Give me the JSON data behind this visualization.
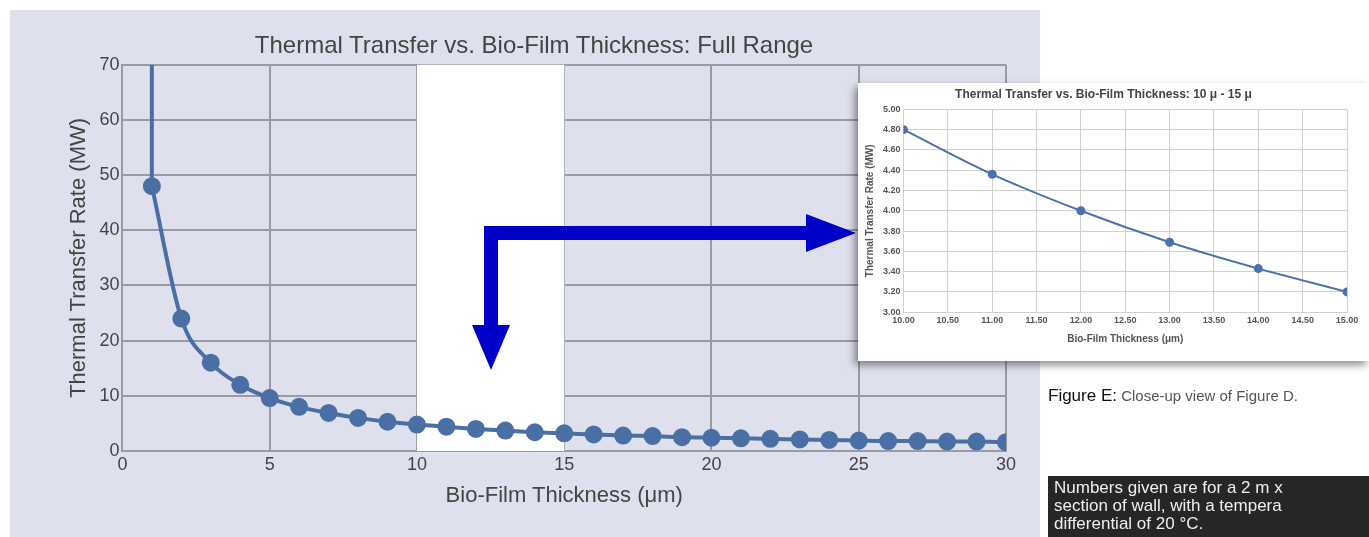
{
  "chart_data": [
    {
      "type": "line",
      "title": "Thermal Transfer vs. Bio-Film Thickness: Full Range",
      "xlabel": "Bio-Film Thickness (μm)",
      "ylabel": "Thermal Transfer Rate (MW)",
      "xlim": [
        0,
        30
      ],
      "xticks": [
        0,
        5,
        10,
        15,
        20,
        25,
        30
      ],
      "ylim": [
        0,
        70
      ],
      "yticks": [
        0,
        10,
        20,
        30,
        40,
        50,
        60,
        70
      ],
      "grid": true,
      "bands": [
        {
          "axis": "x",
          "from": 10,
          "to": 15,
          "color": "#ffffff"
        }
      ],
      "series": [
        {
          "color": "#4a6fa5",
          "x": [
            1,
            1
          ],
          "values": [
            70,
            48
          ]
        },
        {
          "color": "#4a6fa5",
          "marker": "circle",
          "x": [
            1,
            2,
            3,
            4,
            5,
            6,
            7,
            8,
            9,
            10,
            11,
            12,
            13,
            14,
            15,
            16,
            17,
            18,
            19,
            20,
            21,
            22,
            23,
            24,
            25,
            26,
            27,
            28,
            29,
            30
          ],
          "values": [
            48,
            24,
            16,
            12,
            9.6,
            8,
            6.9,
            6,
            5.3,
            4.8,
            4.4,
            4,
            3.7,
            3.4,
            3.2,
            3,
            2.8,
            2.7,
            2.5,
            2.4,
            2.3,
            2.2,
            2.1,
            2,
            1.9,
            1.8,
            1.8,
            1.7,
            1.7,
            1.6
          ]
        }
      ]
    },
    {
      "type": "line",
      "title": "Thermal Transfer vs. Bio-Film Thickness: 10 μ - 15 μ",
      "xlabel": "Bio-Film Thickness (μm)",
      "ylabel": "Thermal Transfer Rate (MW)",
      "xlim": [
        10,
        15
      ],
      "xticks": [
        {
          "value": 10,
          "label": "10.00"
        },
        {
          "value": 10.5,
          "label": "10.50"
        },
        {
          "value": 11,
          "label": "11.00"
        },
        {
          "value": 11.5,
          "label": "11.50"
        },
        {
          "value": 12,
          "label": "12.00"
        },
        {
          "value": 12.5,
          "label": "12.50"
        },
        {
          "value": 13,
          "label": "13.00"
        },
        {
          "value": 13.5,
          "label": "13.50"
        },
        {
          "value": 14,
          "label": "14.00"
        },
        {
          "value": 14.5,
          "label": "14.50"
        },
        {
          "value": 15,
          "label": "15.00"
        }
      ],
      "ylim": [
        3,
        5
      ],
      "yticks": [
        {
          "value": 3,
          "label": "3.00"
        },
        {
          "value": 3.2,
          "label": "3.20"
        },
        {
          "value": 3.4,
          "label": "3.40"
        },
        {
          "value": 3.6,
          "label": "3.60"
        },
        {
          "value": 3.8,
          "label": "3.80"
        },
        {
          "value": 4,
          "label": "4.00"
        },
        {
          "value": 4.2,
          "label": "4.20"
        },
        {
          "value": 4.4,
          "label": "4.40"
        },
        {
          "value": 4.6,
          "label": "4.60"
        },
        {
          "value": 4.8,
          "label": "4.80"
        },
        {
          "value": 5,
          "label": "5.00"
        }
      ],
      "grid": true,
      "marker": "circle",
      "series": [
        {
          "color": "#4a72ac",
          "x": [
            10,
            11,
            12,
            13,
            14,
            15
          ],
          "values": [
            4.8,
            4.36,
            4,
            3.69,
            3.43,
            3.2
          ]
        }
      ],
      "annotations": [
        "Figure E: Close-up view of Figure D.",
        "Numbers given are for a 2 m x\nsection of wall, with a tempera\ndifferential of 20 °C."
      ]
    }
  ]
}
